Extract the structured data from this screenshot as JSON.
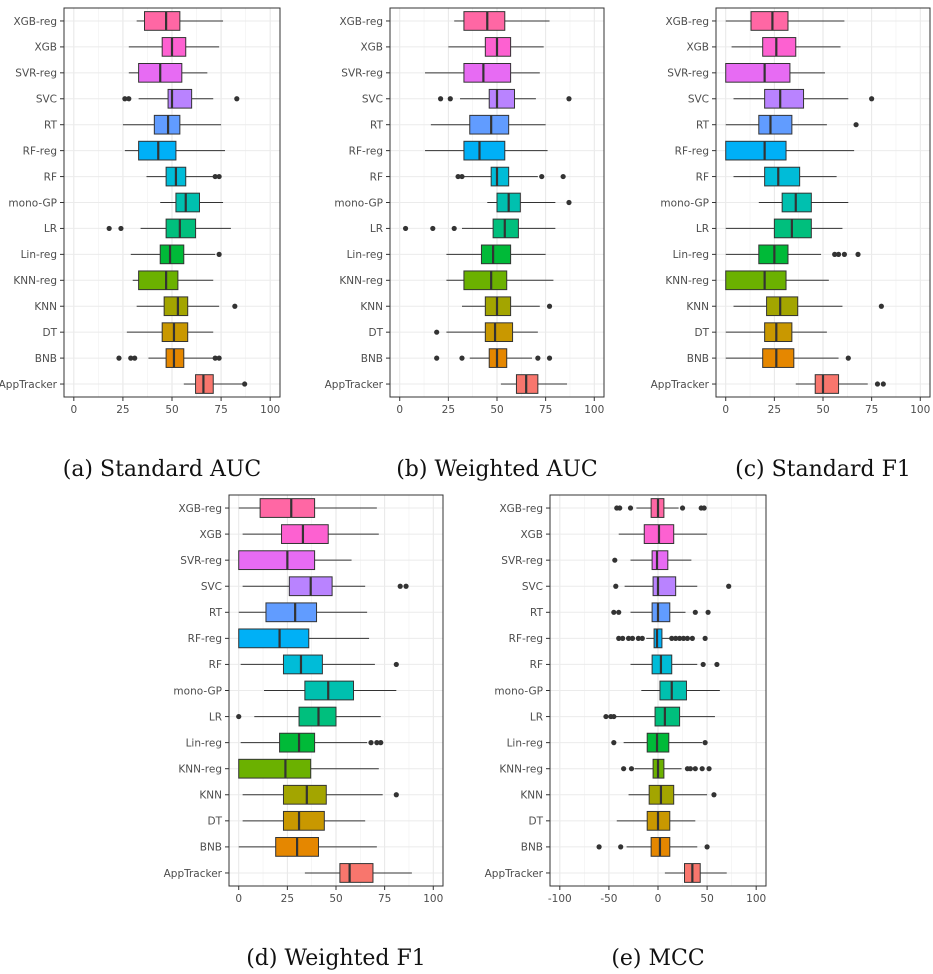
{
  "colors": {
    "AppTracker": "#F8766D",
    "BNB": "#E58700",
    "DT": "#C99800",
    "KNN": "#A3A500",
    "KNN-reg": "#6BB100",
    "Lin-reg": "#00BA38",
    "LR": "#00BF7D",
    "mono-GP": "#00C0AF",
    "RF": "#00BCD8",
    "RF-reg": "#00B0F6",
    "RT": "#619CFF",
    "SVC": "#B983FF",
    "SVR-reg": "#E76BF3",
    "XGB": "#FD61D1",
    "XGB-reg": "#FF67A4"
  },
  "chart_data": [
    {
      "type": "boxplot",
      "caption": "(a) Standard AUC",
      "xlim": [
        -5,
        105
      ],
      "ticks": [
        0,
        25,
        50,
        75,
        100
      ],
      "categories": [
        "XGB-reg",
        "XGB",
        "SVR-reg",
        "SVC",
        "RT",
        "RF-reg",
        "RF",
        "mono-GP",
        "LR",
        "Lin-reg",
        "KNN-reg",
        "KNN",
        "DT",
        "BNB",
        "AppTracker"
      ],
      "boxes": [
        {
          "q1": 36,
          "med": 47,
          "q3": 54,
          "lo": 32,
          "hi": 76,
          "out": []
        },
        {
          "q1": 45,
          "med": 50,
          "q3": 57,
          "lo": 28,
          "hi": 74,
          "out": []
        },
        {
          "q1": 33,
          "med": 44,
          "q3": 55,
          "lo": 28,
          "hi": 68,
          "out": []
        },
        {
          "q1": 48,
          "med": 50,
          "q3": 60,
          "lo": 33,
          "hi": 71,
          "out": [
            26,
            28,
            83
          ]
        },
        {
          "q1": 41,
          "med": 48,
          "q3": 54,
          "lo": 25,
          "hi": 75,
          "out": []
        },
        {
          "q1": 33,
          "med": 43,
          "q3": 52,
          "lo": 26,
          "hi": 77,
          "out": []
        },
        {
          "q1": 47,
          "med": 52,
          "q3": 57,
          "lo": 37,
          "hi": 71,
          "out": [
            72,
            74
          ]
        },
        {
          "q1": 52,
          "med": 57,
          "q3": 64,
          "lo": 44,
          "hi": 76,
          "out": []
        },
        {
          "q1": 47,
          "med": 54,
          "q3": 62,
          "lo": 34,
          "hi": 80,
          "out": [
            18,
            24
          ]
        },
        {
          "q1": 44,
          "med": 49,
          "q3": 56,
          "lo": 29,
          "hi": 72,
          "out": [
            74
          ]
        },
        {
          "q1": 33,
          "med": 47,
          "q3": 53,
          "lo": 30,
          "hi": 71,
          "out": []
        },
        {
          "q1": 46,
          "med": 53,
          "q3": 58,
          "lo": 32,
          "hi": 74,
          "out": [
            82
          ]
        },
        {
          "q1": 45,
          "med": 51,
          "q3": 58,
          "lo": 27,
          "hi": 71,
          "out": []
        },
        {
          "q1": 47,
          "med": 51,
          "q3": 56,
          "lo": 38,
          "hi": 71,
          "out": [
            23,
            29,
            31,
            72,
            74
          ]
        },
        {
          "q1": 62,
          "med": 66,
          "q3": 71,
          "lo": 56,
          "hi": 87,
          "out": [
            87
          ]
        }
      ]
    },
    {
      "type": "boxplot",
      "caption": "(b) Weighted AUC",
      "xlim": [
        -5,
        105
      ],
      "ticks": [
        0,
        25,
        50,
        75,
        100
      ],
      "categories": [
        "XGB-reg",
        "XGB",
        "SVR-reg",
        "SVC",
        "RT",
        "RF-reg",
        "RF",
        "mono-GP",
        "LR",
        "Lin-reg",
        "KNN-reg",
        "KNN",
        "DT",
        "BNB",
        "AppTracker"
      ],
      "boxes": [
        {
          "q1": 33,
          "med": 45,
          "q3": 54,
          "lo": 28,
          "hi": 77,
          "out": []
        },
        {
          "q1": 44,
          "med": 50,
          "q3": 57,
          "lo": 25,
          "hi": 74,
          "out": []
        },
        {
          "q1": 33,
          "med": 43,
          "q3": 57,
          "lo": 13,
          "hi": 72,
          "out": []
        },
        {
          "q1": 46,
          "med": 50,
          "q3": 59,
          "lo": 31,
          "hi": 70,
          "out": [
            21,
            26,
            87
          ]
        },
        {
          "q1": 36,
          "med": 47,
          "q3": 56,
          "lo": 16,
          "hi": 75,
          "out": []
        },
        {
          "q1": 33,
          "med": 41,
          "q3": 54,
          "lo": 13,
          "hi": 76,
          "out": []
        },
        {
          "q1": 47,
          "med": 50,
          "q3": 56,
          "lo": 33,
          "hi": 71,
          "out": [
            30,
            32,
            73,
            84
          ]
        },
        {
          "q1": 50,
          "med": 56,
          "q3": 62,
          "lo": 45,
          "hi": 80,
          "out": [
            87
          ]
        },
        {
          "q1": 48,
          "med": 54,
          "q3": 61,
          "lo": 32,
          "hi": 80,
          "out": [
            3,
            17,
            28
          ]
        },
        {
          "q1": 42,
          "med": 48,
          "q3": 57,
          "lo": 24,
          "hi": 75,
          "out": []
        },
        {
          "q1": 33,
          "med": 47,
          "q3": 55,
          "lo": 24,
          "hi": 79,
          "out": []
        },
        {
          "q1": 44,
          "med": 50,
          "q3": 57,
          "lo": 32,
          "hi": 72,
          "out": [
            77
          ]
        },
        {
          "q1": 44,
          "med": 49,
          "q3": 58,
          "lo": 24,
          "hi": 71,
          "out": [
            19
          ]
        },
        {
          "q1": 46,
          "med": 50,
          "q3": 55,
          "lo": 36,
          "hi": 68,
          "out": [
            19,
            32,
            71,
            77
          ]
        },
        {
          "q1": 60,
          "med": 65,
          "q3": 71,
          "lo": 52,
          "hi": 86,
          "out": []
        }
      ]
    },
    {
      "type": "boxplot",
      "caption": "(c) Standard F1",
      "xlim": [
        -5,
        105
      ],
      "ticks": [
        0,
        25,
        50,
        75,
        100
      ],
      "categories": [
        "XGB-reg",
        "XGB",
        "SVR-reg",
        "SVC",
        "RT",
        "RF-reg",
        "RF",
        "mono-GP",
        "LR",
        "Lin-reg",
        "KNN-reg",
        "KNN",
        "DT",
        "BNB",
        "AppTracker"
      ],
      "boxes": [
        {
          "q1": 13,
          "med": 24,
          "q3": 32,
          "lo": 0,
          "hi": 61,
          "out": []
        },
        {
          "q1": 19,
          "med": 26,
          "q3": 36,
          "lo": 3,
          "hi": 59,
          "out": []
        },
        {
          "q1": 0,
          "med": 20,
          "q3": 33,
          "lo": 0,
          "hi": 51,
          "out": []
        },
        {
          "q1": 20,
          "med": 28,
          "q3": 40,
          "lo": 4,
          "hi": 63,
          "out": [
            75
          ]
        },
        {
          "q1": 17,
          "med": 23,
          "q3": 34,
          "lo": 0,
          "hi": 52,
          "out": [
            67
          ]
        },
        {
          "q1": 0,
          "med": 20,
          "q3": 31,
          "lo": 0,
          "hi": 66,
          "out": []
        },
        {
          "q1": 20,
          "med": 27,
          "q3": 38,
          "lo": 4,
          "hi": 57,
          "out": []
        },
        {
          "q1": 29,
          "med": 36,
          "q3": 44,
          "lo": 17,
          "hi": 63,
          "out": []
        },
        {
          "q1": 25,
          "med": 34,
          "q3": 44,
          "lo": 0,
          "hi": 60,
          "out": []
        },
        {
          "q1": 17,
          "med": 25,
          "q3": 32,
          "lo": 0,
          "hi": 49,
          "out": [
            56,
            58,
            61,
            68
          ]
        },
        {
          "q1": 0,
          "med": 20,
          "q3": 31,
          "lo": 0,
          "hi": 53,
          "out": []
        },
        {
          "q1": 21,
          "med": 28,
          "q3": 37,
          "lo": 4,
          "hi": 60,
          "out": [
            80
          ]
        },
        {
          "q1": 20,
          "med": 26,
          "q3": 34,
          "lo": 0,
          "hi": 52,
          "out": []
        },
        {
          "q1": 19,
          "med": 26,
          "q3": 35,
          "lo": 0,
          "hi": 58,
          "out": [
            63
          ]
        },
        {
          "q1": 46,
          "med": 50,
          "q3": 58,
          "lo": 36,
          "hi": 73,
          "out": [
            78,
            81
          ]
        }
      ]
    },
    {
      "type": "boxplot",
      "caption": "(d) Weighted F1",
      "xlim": [
        -5,
        105
      ],
      "ticks": [
        0,
        25,
        50,
        75,
        100
      ],
      "categories": [
        "XGB-reg",
        "XGB",
        "SVR-reg",
        "SVC",
        "RT",
        "RF-reg",
        "RF",
        "mono-GP",
        "LR",
        "Lin-reg",
        "KNN-reg",
        "KNN",
        "DT",
        "BNB",
        "AppTracker"
      ],
      "boxes": [
        {
          "q1": 11,
          "med": 27,
          "q3": 39,
          "lo": 0,
          "hi": 71,
          "out": []
        },
        {
          "q1": 22,
          "med": 33,
          "q3": 46,
          "lo": 2,
          "hi": 72,
          "out": []
        },
        {
          "q1": 0,
          "med": 25,
          "q3": 39,
          "lo": 0,
          "hi": 58,
          "out": []
        },
        {
          "q1": 26,
          "med": 37,
          "q3": 48,
          "lo": 2,
          "hi": 65,
          "out": [
            83,
            86
          ]
        },
        {
          "q1": 14,
          "med": 29,
          "q3": 40,
          "lo": 0,
          "hi": 66,
          "out": []
        },
        {
          "q1": 0,
          "med": 21,
          "q3": 36,
          "lo": 0,
          "hi": 67,
          "out": []
        },
        {
          "q1": 23,
          "med": 32,
          "q3": 43,
          "lo": 1,
          "hi": 70,
          "out": [
            81
          ]
        },
        {
          "q1": 34,
          "med": 46,
          "q3": 59,
          "lo": 13,
          "hi": 81,
          "out": []
        },
        {
          "q1": 31,
          "med": 41,
          "q3": 50,
          "lo": 8,
          "hi": 73,
          "out": [
            0
          ]
        },
        {
          "q1": 21,
          "med": 31,
          "q3": 39,
          "lo": 1,
          "hi": 66,
          "out": [
            68,
            71,
            73
          ]
        },
        {
          "q1": 0,
          "med": 24,
          "q3": 37,
          "lo": 0,
          "hi": 72,
          "out": []
        },
        {
          "q1": 23,
          "med": 35,
          "q3": 45,
          "lo": 2,
          "hi": 74,
          "out": [
            81
          ]
        },
        {
          "q1": 23,
          "med": 31,
          "q3": 44,
          "lo": 2,
          "hi": 65,
          "out": []
        },
        {
          "q1": 19,
          "med": 30,
          "q3": 41,
          "lo": 0,
          "hi": 71,
          "out": []
        },
        {
          "q1": 52,
          "med": 57,
          "q3": 69,
          "lo": 34,
          "hi": 89,
          "out": []
        }
      ]
    },
    {
      "type": "boxplot",
      "caption": "(e) MCC",
      "xlim": [
        -110,
        110
      ],
      "ticks": [
        -100,
        -50,
        0,
        50,
        100
      ],
      "categories": [
        "XGB-reg",
        "XGB",
        "SVR-reg",
        "SVC",
        "RT",
        "RF-reg",
        "RF",
        "mono-GP",
        "LR",
        "Lin-reg",
        "KNN-reg",
        "KNN",
        "DT",
        "BNB",
        "AppTracker"
      ],
      "boxes": [
        {
          "q1": -7,
          "med": 0,
          "q3": 6,
          "lo": -22,
          "hi": 21,
          "out": [
            -39,
            -42,
            -28,
            25,
            44,
            47
          ]
        },
        {
          "q1": -14,
          "med": 1,
          "q3": 16,
          "lo": -40,
          "hi": 50,
          "out": []
        },
        {
          "q1": -6,
          "med": -1,
          "q3": 10,
          "lo": -28,
          "hi": 34,
          "out": [
            -44
          ]
        },
        {
          "q1": -5,
          "med": 0,
          "q3": 18,
          "lo": -34,
          "hi": 40,
          "out": [
            -43,
            72
          ]
        },
        {
          "q1": -6,
          "med": 0,
          "q3": 12,
          "lo": -28,
          "hi": 28,
          "out": [
            -45,
            -40,
            38,
            51
          ]
        },
        {
          "q1": -4,
          "med": -1,
          "q3": 4,
          "lo": -12,
          "hi": 12,
          "out": [
            -40,
            -36,
            -30,
            -26,
            -20,
            -16,
            14,
            18,
            22,
            26,
            30,
            48,
            35
          ]
        },
        {
          "q1": -6,
          "med": 3,
          "q3": 14,
          "lo": -28,
          "hi": 40,
          "out": [
            46,
            60
          ]
        },
        {
          "q1": 2,
          "med": 14,
          "q3": 29,
          "lo": -17,
          "hi": 63,
          "out": []
        },
        {
          "q1": -3,
          "med": 7,
          "q3": 22,
          "lo": -43,
          "hi": 58,
          "out": [
            -53,
            -48,
            -45
          ]
        },
        {
          "q1": -11,
          "med": -1,
          "q3": 11,
          "lo": -35,
          "hi": 45,
          "out": [
            -45,
            48
          ]
        },
        {
          "q1": -5,
          "med": 0,
          "q3": 6,
          "lo": -24,
          "hi": 24,
          "out": [
            -35,
            -27,
            30,
            33,
            38,
            45,
            52
          ]
        },
        {
          "q1": -9,
          "med": 3,
          "q3": 16,
          "lo": -30,
          "hi": 50,
          "out": [
            57
          ]
        },
        {
          "q1": -11,
          "med": 0,
          "q3": 12,
          "lo": -42,
          "hi": 38,
          "out": []
        },
        {
          "q1": -7,
          "med": 2,
          "q3": 12,
          "lo": -32,
          "hi": 40,
          "out": [
            -60,
            -38,
            50
          ]
        },
        {
          "q1": 27,
          "med": 35,
          "q3": 43,
          "lo": 7,
          "hi": 70,
          "out": []
        }
      ]
    }
  ]
}
